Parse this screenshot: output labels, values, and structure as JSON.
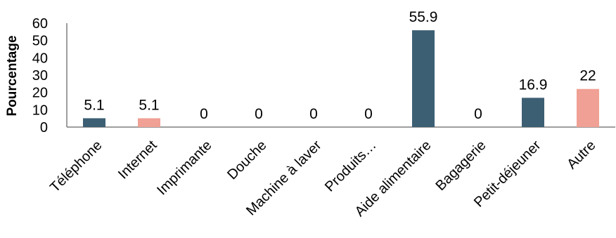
{
  "chart_data": {
    "type": "bar",
    "title": "",
    "xlabel": "",
    "ylabel": "Pourcentage",
    "ylim": [
      0,
      60
    ],
    "yticks": [
      0,
      10,
      20,
      30,
      40,
      50,
      60
    ],
    "grid": false,
    "legend": "none",
    "categories": [
      "Téléphone",
      "Internet",
      "Imprimante",
      "Douche",
      "Machine à laver",
      "Produits…",
      "Aide alimentaire",
      "Bagagerie",
      "Petit-déjeuner",
      "Autre"
    ],
    "values": [
      5.1,
      5.1,
      0,
      0,
      0,
      0,
      55.9,
      0,
      16.9,
      22
    ],
    "data_labels": [
      "5.1",
      "5.1",
      "0",
      "0",
      "0",
      "0",
      "55.9",
      "0",
      "16.9",
      "22"
    ],
    "bar_colors": [
      "#3d5f73",
      "#f0a095",
      "#3d5f73",
      "#f0a095",
      "#3d5f73",
      "#f0a095",
      "#3d5f73",
      "#f0a095",
      "#3d5f73",
      "#f0a095"
    ]
  }
}
